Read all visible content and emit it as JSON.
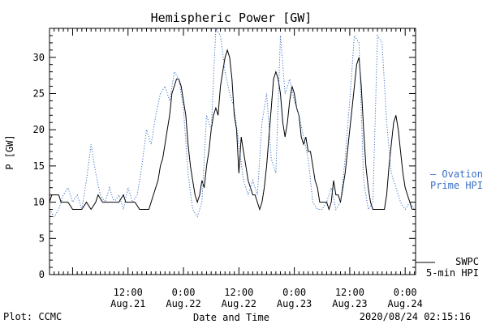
{
  "chart_data": {
    "type": "line",
    "title": "Hemispheric Power [GW]",
    "ylabel": "P [GW]",
    "xlabel": "Date and Time",
    "ylim": [
      0,
      34
    ],
    "yticks": [
      0,
      5,
      10,
      15,
      20,
      25,
      30
    ],
    "xlim": [
      "2020-08-20T19:00",
      "2020-08-24T02:15"
    ],
    "xticks": [
      {
        "t": "2020-08-21T12:00",
        "time": "12:00",
        "date": "Aug.21"
      },
      {
        "t": "2020-08-22T00:00",
        "time": "0:00",
        "date": "Aug.22"
      },
      {
        "t": "2020-08-22T12:00",
        "time": "12:00",
        "date": "Aug.22"
      },
      {
        "t": "2020-08-23T00:00",
        "time": "0:00",
        "date": "Aug.23"
      },
      {
        "t": "2020-08-23T12:00",
        "time": "12:00",
        "date": "Aug.23"
      },
      {
        "t": "2020-08-24T00:00",
        "time": "0:00",
        "date": "Aug.24"
      }
    ],
    "series": [
      {
        "name": "SWPC 5-min HPI",
        "style": "solid",
        "color": "#000000",
        "legend": [
          "SWPC",
          "5-min HPI"
        ],
        "points": [
          [
            "2020-08-20T19:00",
            10
          ],
          [
            "2020-08-20T19:30",
            11
          ],
          [
            "2020-08-20T21:00",
            11
          ],
          [
            "2020-08-20T21:30",
            10
          ],
          [
            "2020-08-20T23:00",
            10
          ],
          [
            "2020-08-21T00:00",
            9
          ],
          [
            "2020-08-21T02:00",
            9
          ],
          [
            "2020-08-21T03:00",
            10
          ],
          [
            "2020-08-21T04:00",
            9
          ],
          [
            "2020-08-21T05:00",
            10
          ],
          [
            "2020-08-21T05:30",
            11
          ],
          [
            "2020-08-21T06:30",
            10
          ],
          [
            "2020-08-21T08:00",
            10
          ],
          [
            "2020-08-21T10:00",
            10
          ],
          [
            "2020-08-21T11:00",
            11
          ],
          [
            "2020-08-21T11:30",
            10
          ],
          [
            "2020-08-21T13:30",
            10
          ],
          [
            "2020-08-21T14:30",
            9
          ],
          [
            "2020-08-21T16:30",
            9
          ],
          [
            "2020-08-21T17:30",
            11
          ],
          [
            "2020-08-21T18:30",
            13
          ],
          [
            "2020-08-21T19:00",
            15
          ],
          [
            "2020-08-21T19:30",
            16
          ],
          [
            "2020-08-21T20:00",
            18
          ],
          [
            "2020-08-21T20:30",
            20
          ],
          [
            "2020-08-21T21:00",
            22
          ],
          [
            "2020-08-21T21:30",
            25
          ],
          [
            "2020-08-21T22:00",
            26
          ],
          [
            "2020-08-21T22:30",
            27
          ],
          [
            "2020-08-21T23:00",
            27
          ],
          [
            "2020-08-21T23:30",
            26
          ],
          [
            "2020-08-22T00:00",
            24
          ],
          [
            "2020-08-22T00:30",
            22
          ],
          [
            "2020-08-22T01:00",
            18
          ],
          [
            "2020-08-22T01:30",
            15
          ],
          [
            "2020-08-22T02:00",
            13
          ],
          [
            "2020-08-22T02:30",
            11
          ],
          [
            "2020-08-22T03:00",
            10
          ],
          [
            "2020-08-22T03:30",
            11
          ],
          [
            "2020-08-22T04:00",
            13
          ],
          [
            "2020-08-22T04:30",
            12
          ],
          [
            "2020-08-22T05:00",
            15
          ],
          [
            "2020-08-22T05:30",
            17
          ],
          [
            "2020-08-22T06:00",
            20
          ],
          [
            "2020-08-22T06:30",
            22
          ],
          [
            "2020-08-22T07:00",
            23
          ],
          [
            "2020-08-22T07:30",
            22
          ],
          [
            "2020-08-22T08:00",
            26
          ],
          [
            "2020-08-22T08:30",
            28
          ],
          [
            "2020-08-22T09:00",
            30
          ],
          [
            "2020-08-22T09:30",
            31
          ],
          [
            "2020-08-22T10:00",
            30
          ],
          [
            "2020-08-22T10:30",
            27
          ],
          [
            "2020-08-22T11:00",
            22
          ],
          [
            "2020-08-22T11:30",
            20
          ],
          [
            "2020-08-22T12:00",
            14
          ],
          [
            "2020-08-22T12:30",
            19
          ],
          [
            "2020-08-22T13:00",
            17
          ],
          [
            "2020-08-22T13:30",
            15
          ],
          [
            "2020-08-22T14:00",
            13
          ],
          [
            "2020-08-22T14:30",
            12
          ],
          [
            "2020-08-22T15:00",
            11
          ],
          [
            "2020-08-22T15:30",
            11
          ],
          [
            "2020-08-22T16:00",
            10
          ],
          [
            "2020-08-22T16:30",
            9
          ],
          [
            "2020-08-22T17:00",
            10
          ],
          [
            "2020-08-22T17:30",
            12
          ],
          [
            "2020-08-22T18:00",
            15
          ],
          [
            "2020-08-22T18:30",
            19
          ],
          [
            "2020-08-22T19:00",
            23
          ],
          [
            "2020-08-22T19:30",
            27
          ],
          [
            "2020-08-22T20:00",
            28
          ],
          [
            "2020-08-22T20:30",
            27
          ],
          [
            "2020-08-22T21:00",
            25
          ],
          [
            "2020-08-22T21:30",
            21
          ],
          [
            "2020-08-22T22:00",
            19
          ],
          [
            "2020-08-22T22:30",
            21
          ],
          [
            "2020-08-22T23:00",
            24
          ],
          [
            "2020-08-22T23:30",
            26
          ],
          [
            "2020-08-23T00:00",
            25
          ],
          [
            "2020-08-23T00:30",
            23
          ],
          [
            "2020-08-23T01:00",
            22
          ],
          [
            "2020-08-23T01:30",
            19
          ],
          [
            "2020-08-23T02:00",
            18
          ],
          [
            "2020-08-23T02:30",
            19
          ],
          [
            "2020-08-23T03:00",
            17
          ],
          [
            "2020-08-23T03:30",
            17
          ],
          [
            "2020-08-23T04:00",
            15
          ],
          [
            "2020-08-23T04:30",
            13
          ],
          [
            "2020-08-23T05:00",
            12
          ],
          [
            "2020-08-23T05:30",
            10
          ],
          [
            "2020-08-23T06:00",
            10
          ],
          [
            "2020-08-23T07:00",
            10
          ],
          [
            "2020-08-23T07:30",
            9
          ],
          [
            "2020-08-23T08:00",
            10
          ],
          [
            "2020-08-23T08:30",
            13
          ],
          [
            "2020-08-23T09:00",
            11
          ],
          [
            "2020-08-23T09:30",
            11
          ],
          [
            "2020-08-23T10:00",
            10
          ],
          [
            "2020-08-23T10:30",
            12
          ],
          [
            "2020-08-23T11:00",
            14
          ],
          [
            "2020-08-23T11:30",
            17
          ],
          [
            "2020-08-23T12:00",
            20
          ],
          [
            "2020-08-23T12:30",
            23
          ],
          [
            "2020-08-23T13:00",
            26
          ],
          [
            "2020-08-23T13:30",
            29
          ],
          [
            "2020-08-23T14:00",
            30
          ],
          [
            "2020-08-23T14:30",
            26
          ],
          [
            "2020-08-23T15:00",
            20
          ],
          [
            "2020-08-23T15:30",
            15
          ],
          [
            "2020-08-23T16:00",
            12
          ],
          [
            "2020-08-23T16:30",
            10
          ],
          [
            "2020-08-23T17:00",
            9
          ],
          [
            "2020-08-23T19:30",
            9
          ],
          [
            "2020-08-23T20:00",
            11
          ],
          [
            "2020-08-23T20:30",
            15
          ],
          [
            "2020-08-23T21:00",
            18
          ],
          [
            "2020-08-23T21:30",
            21
          ],
          [
            "2020-08-23T22:00",
            22
          ],
          [
            "2020-08-23T22:30",
            20
          ],
          [
            "2020-08-23T23:00",
            17
          ],
          [
            "2020-08-23T23:30",
            14
          ],
          [
            "2020-08-24T00:00",
            12
          ],
          [
            "2020-08-24T00:30",
            11
          ],
          [
            "2020-08-24T01:00",
            10
          ],
          [
            "2020-08-24T01:30",
            9
          ]
        ]
      },
      {
        "name": "Ovation Prime HPI",
        "style": "dotted",
        "color": "#3a6fc4",
        "legend": [
          "— Ovation",
          "Prime HPI"
        ],
        "points": [
          [
            "2020-08-20T19:00",
            9
          ],
          [
            "2020-08-20T20:00",
            8
          ],
          [
            "2020-08-20T21:00",
            9
          ],
          [
            "2020-08-20T22:00",
            11
          ],
          [
            "2020-08-20T23:00",
            12
          ],
          [
            "2020-08-21T00:00",
            10
          ],
          [
            "2020-08-21T01:00",
            11
          ],
          [
            "2020-08-21T02:00",
            9
          ],
          [
            "2020-08-21T03:00",
            13
          ],
          [
            "2020-08-21T04:00",
            18
          ],
          [
            "2020-08-21T05:00",
            14
          ],
          [
            "2020-08-21T06:00",
            11
          ],
          [
            "2020-08-21T07:00",
            10
          ],
          [
            "2020-08-21T08:00",
            12
          ],
          [
            "2020-08-21T09:00",
            10
          ],
          [
            "2020-08-21T10:00",
            11
          ],
          [
            "2020-08-21T11:00",
            9
          ],
          [
            "2020-08-21T12:00",
            12
          ],
          [
            "2020-08-21T13:00",
            10
          ],
          [
            "2020-08-21T14:00",
            11
          ],
          [
            "2020-08-21T15:00",
            15
          ],
          [
            "2020-08-21T16:00",
            20
          ],
          [
            "2020-08-21T17:00",
            18
          ],
          [
            "2020-08-21T18:00",
            22
          ],
          [
            "2020-08-21T19:00",
            25
          ],
          [
            "2020-08-21T20:00",
            26
          ],
          [
            "2020-08-21T21:00",
            24
          ],
          [
            "2020-08-21T22:00",
            28
          ],
          [
            "2020-08-21T23:00",
            27
          ],
          [
            "2020-08-22T00:00",
            23
          ],
          [
            "2020-08-22T01:00",
            14
          ],
          [
            "2020-08-22T02:00",
            9
          ],
          [
            "2020-08-22T03:00",
            8
          ],
          [
            "2020-08-22T04:00",
            10
          ],
          [
            "2020-08-22T05:00",
            22
          ],
          [
            "2020-08-22T06:00",
            20
          ],
          [
            "2020-08-22T07:00",
            34
          ],
          [
            "2020-08-22T08:00",
            33
          ],
          [
            "2020-08-22T09:00",
            28
          ],
          [
            "2020-08-22T10:00",
            25
          ],
          [
            "2020-08-22T11:00",
            23
          ],
          [
            "2020-08-22T12:00",
            18
          ],
          [
            "2020-08-22T13:00",
            13
          ],
          [
            "2020-08-22T14:00",
            11
          ],
          [
            "2020-08-22T15:00",
            13
          ],
          [
            "2020-08-22T16:00",
            11
          ],
          [
            "2020-08-22T17:00",
            21
          ],
          [
            "2020-08-22T18:00",
            25
          ],
          [
            "2020-08-22T19:00",
            16
          ],
          [
            "2020-08-22T20:00",
            14
          ],
          [
            "2020-08-22T21:00",
            33
          ],
          [
            "2020-08-22T22:00",
            25
          ],
          [
            "2020-08-22T23:00",
            27
          ],
          [
            "2020-08-23T00:00",
            24
          ],
          [
            "2020-08-23T01:00",
            22
          ],
          [
            "2020-08-23T02:00",
            19
          ],
          [
            "2020-08-23T03:00",
            16
          ],
          [
            "2020-08-23T04:00",
            10
          ],
          [
            "2020-08-23T05:00",
            9
          ],
          [
            "2020-08-23T06:00",
            9
          ],
          [
            "2020-08-23T07:00",
            10
          ],
          [
            "2020-08-23T08:00",
            12
          ],
          [
            "2020-08-23T09:00",
            9
          ],
          [
            "2020-08-23T10:00",
            10
          ],
          [
            "2020-08-23T11:00",
            16
          ],
          [
            "2020-08-23T12:00",
            24
          ],
          [
            "2020-08-23T13:00",
            33
          ],
          [
            "2020-08-23T14:00",
            32
          ],
          [
            "2020-08-23T15:00",
            13
          ],
          [
            "2020-08-23T16:00",
            9
          ],
          [
            "2020-08-23T17:00",
            10
          ],
          [
            "2020-08-23T18:00",
            33
          ],
          [
            "2020-08-23T19:00",
            32
          ],
          [
            "2020-08-23T20:00",
            21
          ],
          [
            "2020-08-23T21:00",
            14
          ],
          [
            "2020-08-23T22:00",
            12
          ],
          [
            "2020-08-23T23:00",
            10
          ],
          [
            "2020-08-24T00:00",
            9
          ],
          [
            "2020-08-24T01:00",
            10
          ],
          [
            "2020-08-24T02:00",
            9
          ]
        ]
      }
    ]
  },
  "footer": {
    "plot_credit": "Plot: CCMC",
    "timestamp": "2020/08/24 02:15:16"
  }
}
